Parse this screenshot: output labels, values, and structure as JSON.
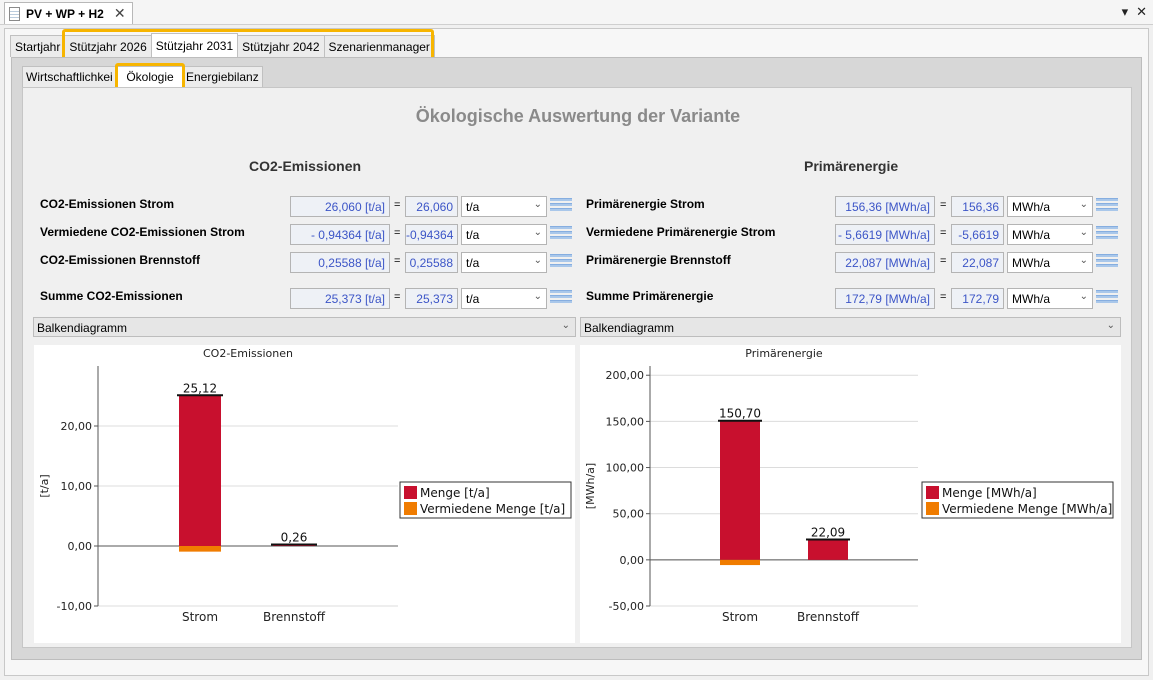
{
  "window": {
    "tab_title": "PV + WP + H2",
    "close_glyph": "✕",
    "pin_glyph": "▾",
    "close_all_glyph": "✕"
  },
  "top_tabs": [
    "Startjahr",
    "Stützjahr 2026",
    "Stützjahr 2031",
    "Stützjahr 2042",
    "Szenarienmanager"
  ],
  "sub_tabs": [
    "Wirtschaftlichkei",
    "Ökologie",
    "Energiebilanz"
  ],
  "main_title": "Ökologische Auswertung der Variante",
  "co2": {
    "title": "CO2-Emissionen",
    "rows": [
      {
        "label": "CO2-Emissionen Strom",
        "raw": "26,060 [t/a]",
        "value": "26,060",
        "unit": "t/a"
      },
      {
        "label": "Vermiedene CO2-Emissionen Strom",
        "raw": "- 0,94364 [t/a]",
        "value": "-0,94364",
        "unit": "t/a"
      },
      {
        "label": "CO2-Emissionen Brennstoff",
        "raw": "0,25588 [t/a]",
        "value": "0,25588",
        "unit": "t/a"
      }
    ],
    "sum": {
      "label": "Summe CO2-Emissionen",
      "raw": "25,373 [t/a]",
      "value": "25,373",
      "unit": "t/a"
    },
    "chart_select": "Balkendiagramm"
  },
  "pe": {
    "title": "Primärenergie",
    "rows": [
      {
        "label": "Primärenergie Strom",
        "raw": "156,36 [MWh/a]",
        "value": "156,36",
        "unit": "MWh/a"
      },
      {
        "label": "Vermiedene Primärenergie Strom",
        "raw": "- 5,6619 [MWh/a]",
        "value": "-5,6619",
        "unit": "MWh/a"
      },
      {
        "label": "Primärenergie Brennstoff",
        "raw": "22,087 [MWh/a]",
        "value": "22,087",
        "unit": "MWh/a"
      }
    ],
    "sum": {
      "label": "Summe Primärenergie",
      "raw": "172,79 [MWh/a]",
      "value": "172,79",
      "unit": "MWh/a"
    },
    "chart_select": "Balkendiagramm"
  },
  "eq_sign": "=",
  "chevron": "⌄",
  "colors": {
    "menge": "#c8102e",
    "vermieden": "#f07c00",
    "highlight": "#f7b500",
    "value_text": "#3c55c7"
  },
  "chart_data": [
    {
      "type": "bar",
      "title": "CO2-Emissionen",
      "ylabel": "[t/a]",
      "categories": [
        "Strom",
        "Brennstoff"
      ],
      "series": [
        {
          "name": "Menge [t/a]",
          "values": [
            25.12,
            0.26
          ]
        },
        {
          "name": "Vermiedene Menge [t/a]",
          "values": [
            -0.94,
            0
          ]
        }
      ],
      "data_labels": [
        "25,12",
        "0,26"
      ],
      "ylim": [
        -10,
        30
      ],
      "yticks": [
        -10,
        0,
        10,
        20
      ],
      "ytick_labels": [
        "-10,00",
        "0,00",
        "10,00",
        "20,00"
      ],
      "grid": true,
      "legend": "right"
    },
    {
      "type": "bar",
      "title": "Primärenergie",
      "ylabel": "[MWh/a]",
      "categories": [
        "Strom",
        "Brennstoff"
      ],
      "series": [
        {
          "name": "Menge [MWh/a]",
          "values": [
            150.7,
            22.09
          ]
        },
        {
          "name": "Vermiedene Menge [MWh/a]",
          "values": [
            -5.66,
            0
          ]
        }
      ],
      "data_labels": [
        "150,70",
        "22,09"
      ],
      "ylim": [
        -50,
        210
      ],
      "yticks": [
        -50,
        0,
        50,
        100,
        150,
        200
      ],
      "ytick_labels": [
        "-50,00",
        "0,00",
        "50,00",
        "100,00",
        "150,00",
        "200,00"
      ],
      "grid": true,
      "legend": "right"
    }
  ]
}
